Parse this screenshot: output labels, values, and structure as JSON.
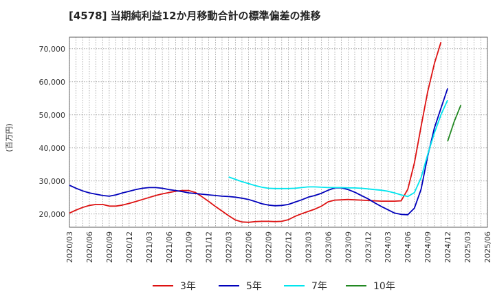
{
  "chart_data": {
    "type": "line",
    "title": "[4578]  当期純利益12か月移動合計の標準偏差の推移",
    "ylabel": "(百万円)",
    "xlabel": "",
    "ylim": [
      16000,
      73500
    ],
    "yticks": [
      20000,
      30000,
      40000,
      50000,
      60000,
      70000
    ],
    "ytick_labels": [
      "20,000",
      "30,000",
      "40,000",
      "50,000",
      "60,000",
      "70,000"
    ],
    "x_start": "2020-03",
    "x_end": "2025-06",
    "xtick_labels": [
      "2020/03",
      "2020/06",
      "2020/09",
      "2020/12",
      "2021/03",
      "2021/06",
      "2021/09",
      "2021/12",
      "2022/03",
      "2022/06",
      "2022/09",
      "2022/12",
      "2023/03",
      "2023/06",
      "2023/09",
      "2023/12",
      "2024/03",
      "2024/06",
      "2024/09",
      "2024/12",
      "2025/03",
      "2025/06"
    ],
    "grid": true,
    "legend_position": "bottom",
    "series": [
      {
        "name": "3年",
        "color": "#dd1111",
        "start": "2020-03",
        "values": [
          20300,
          21200,
          22000,
          22600,
          22900,
          22900,
          22400,
          22400,
          22700,
          23200,
          23800,
          24400,
          25000,
          25600,
          26100,
          26500,
          26900,
          27100,
          27100,
          26500,
          25200,
          23800,
          22300,
          20900,
          19500,
          18200,
          17600,
          17500,
          17700,
          17800,
          17800,
          17700,
          17800,
          18300,
          19300,
          20100,
          20800,
          21500,
          22400,
          23700,
          24200,
          24300,
          24400,
          24300,
          24200,
          24100,
          24000,
          23900,
          23900,
          23900,
          24000,
          27500,
          35500,
          46500,
          57000,
          65500,
          72000
        ]
      },
      {
        "name": "5年",
        "color": "#0000bb",
        "start": "2020-03",
        "values": [
          28700,
          27800,
          27000,
          26400,
          26000,
          25600,
          25400,
          25800,
          26400,
          26900,
          27400,
          27800,
          28000,
          28000,
          27800,
          27400,
          27100,
          26800,
          26400,
          26200,
          26000,
          25800,
          25600,
          25400,
          25300,
          25100,
          24800,
          24400,
          23800,
          23100,
          22700,
          22500,
          22600,
          22900,
          23600,
          24300,
          25100,
          25600,
          26300,
          27200,
          27900,
          27900,
          27400,
          26600,
          25600,
          24600,
          23400,
          22300,
          21300,
          20300,
          19900,
          19800,
          21800,
          27500,
          37500,
          46000,
          52000,
          58000
        ]
      },
      {
        "name": "7年",
        "color": "#00e5ee",
        "start": "2022-03",
        "values": [
          31200,
          30500,
          29800,
          29200,
          28600,
          28100,
          27800,
          27700,
          27700,
          27700,
          27800,
          28000,
          28200,
          28200,
          28100,
          28000,
          28000,
          28000,
          27900,
          27900,
          27800,
          27600,
          27400,
          27200,
          26900,
          26400,
          25800,
          25300,
          26500,
          31000,
          38000,
          44500,
          50000,
          54500
        ]
      },
      {
        "name": "10年",
        "color": "#228822",
        "start": "2024-12",
        "values": [
          42000,
          48000,
          53000
        ]
      }
    ]
  }
}
